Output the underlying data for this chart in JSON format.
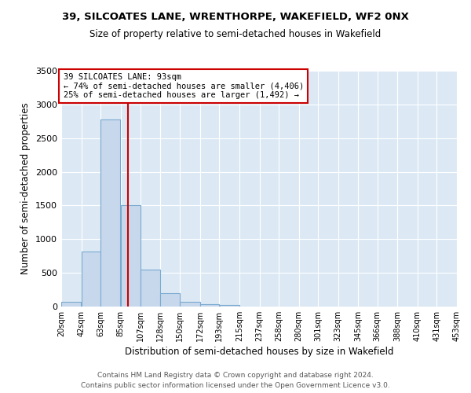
{
  "title": "39, SILCOATES LANE, WRENTHORPE, WAKEFIELD, WF2 0NX",
  "subtitle": "Size of property relative to semi-detached houses in Wakefield",
  "xlabel": "Distribution of semi-detached houses by size in Wakefield",
  "ylabel": "Number of semi-detached properties",
  "bin_edges": [
    20,
    42,
    63,
    85,
    107,
    128,
    150,
    172,
    193,
    215,
    237,
    258,
    280,
    301,
    323,
    345,
    366,
    388,
    410,
    431,
    453
  ],
  "bin_heights": [
    70,
    820,
    2780,
    1500,
    550,
    200,
    70,
    40,
    25,
    0,
    0,
    0,
    0,
    0,
    0,
    0,
    0,
    0,
    0,
    0
  ],
  "bar_color": "#c8d8ec",
  "bar_edge_color": "#7aaad0",
  "property_size": 93,
  "vline_color": "#cc0000",
  "annotation_title": "39 SILCOATES LANE: 93sqm",
  "annotation_line1": "← 74% of semi-detached houses are smaller (4,406)",
  "annotation_line2": "25% of semi-detached houses are larger (1,492) →",
  "annotation_box_color": "#ffffff",
  "annotation_box_edge": "#cc0000",
  "ylim": [
    0,
    3500
  ],
  "yticks": [
    0,
    500,
    1000,
    1500,
    2000,
    2500,
    3000,
    3500
  ],
  "plot_bg_color": "#dce9f5",
  "fig_bg_color": "#ffffff",
  "footer_line1": "Contains HM Land Registry data © Crown copyright and database right 2024.",
  "footer_line2": "Contains public sector information licensed under the Open Government Licence v3.0."
}
